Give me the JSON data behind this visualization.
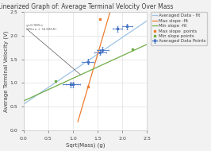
{
  "title": "Linearized Graph of: Average Terminal Velocity Over Mass",
  "xlabel": "Sqrt(Mass) (g)",
  "ylabel": "Average Terminal Velocity (V)",
  "xlim": [
    0,
    2.5
  ],
  "ylim": [
    0,
    2.5
  ],
  "xticks": [
    0,
    0.5,
    1.0,
    1.5,
    2.0,
    2.5
  ],
  "yticks": [
    0,
    0.5,
    1.0,
    1.5,
    2.0,
    2.5
  ],
  "avg_points_x": [
    0.95,
    1.0,
    1.3,
    1.55,
    1.6,
    1.9,
    2.1
  ],
  "avg_points_y": [
    0.97,
    0.97,
    1.45,
    1.65,
    1.7,
    2.15,
    2.2
  ],
  "avg_xerr": [
    0.15,
    0.15,
    0.12,
    0.12,
    0.12,
    0.1,
    0.1
  ],
  "avg_yerr": [
    0.06,
    0.06,
    0.06,
    0.06,
    0.06,
    0.06,
    0.06
  ],
  "max_points_x": [
    1.3,
    1.55
  ],
  "max_points_y": [
    0.92,
    2.35
  ],
  "min_points_x": [
    0.65,
    2.2
  ],
  "min_points_y": [
    1.05,
    1.72
  ],
  "avg_fit_x": [
    0.0,
    2.5
  ],
  "avg_fit_y": [
    0.55,
    2.32
  ],
  "max_fit_x": [
    1.1,
    1.75
  ],
  "max_fit_y": [
    0.18,
    2.5
  ],
  "min_fit_x": [
    0.0,
    2.5
  ],
  "min_fit_y": [
    0.62,
    1.82
  ],
  "annotation_text": "y=0.905×\n.09×x + (4.0415)",
  "annotation_line_x": [
    0.06,
    1.15
  ],
  "annotation_line_y": [
    2.15,
    1.18
  ],
  "avg_color": "#4472C4",
  "max_color": "#ED7D31",
  "min_color": "#70AD47",
  "avg_fit_color": "#9DC3E6",
  "bg_color": "#F2F2F2",
  "plot_bg_color": "#FFFFFF",
  "grid_color": "#D9D9D9",
  "text_color": "#404040",
  "spine_color": "#BFBFBF",
  "annotation_color": "#595959",
  "annotation_line_color": "#595959",
  "title_fontsize": 5.5,
  "label_fontsize": 5.0,
  "tick_fontsize": 4.5,
  "legend_fontsize": 4.0,
  "legend_labels": [
    "Averaged Data Points",
    "Max slope  points",
    "Min slope points",
    "Averaged Data - fit",
    "Max slope -fit",
    "Min slope -fit"
  ]
}
